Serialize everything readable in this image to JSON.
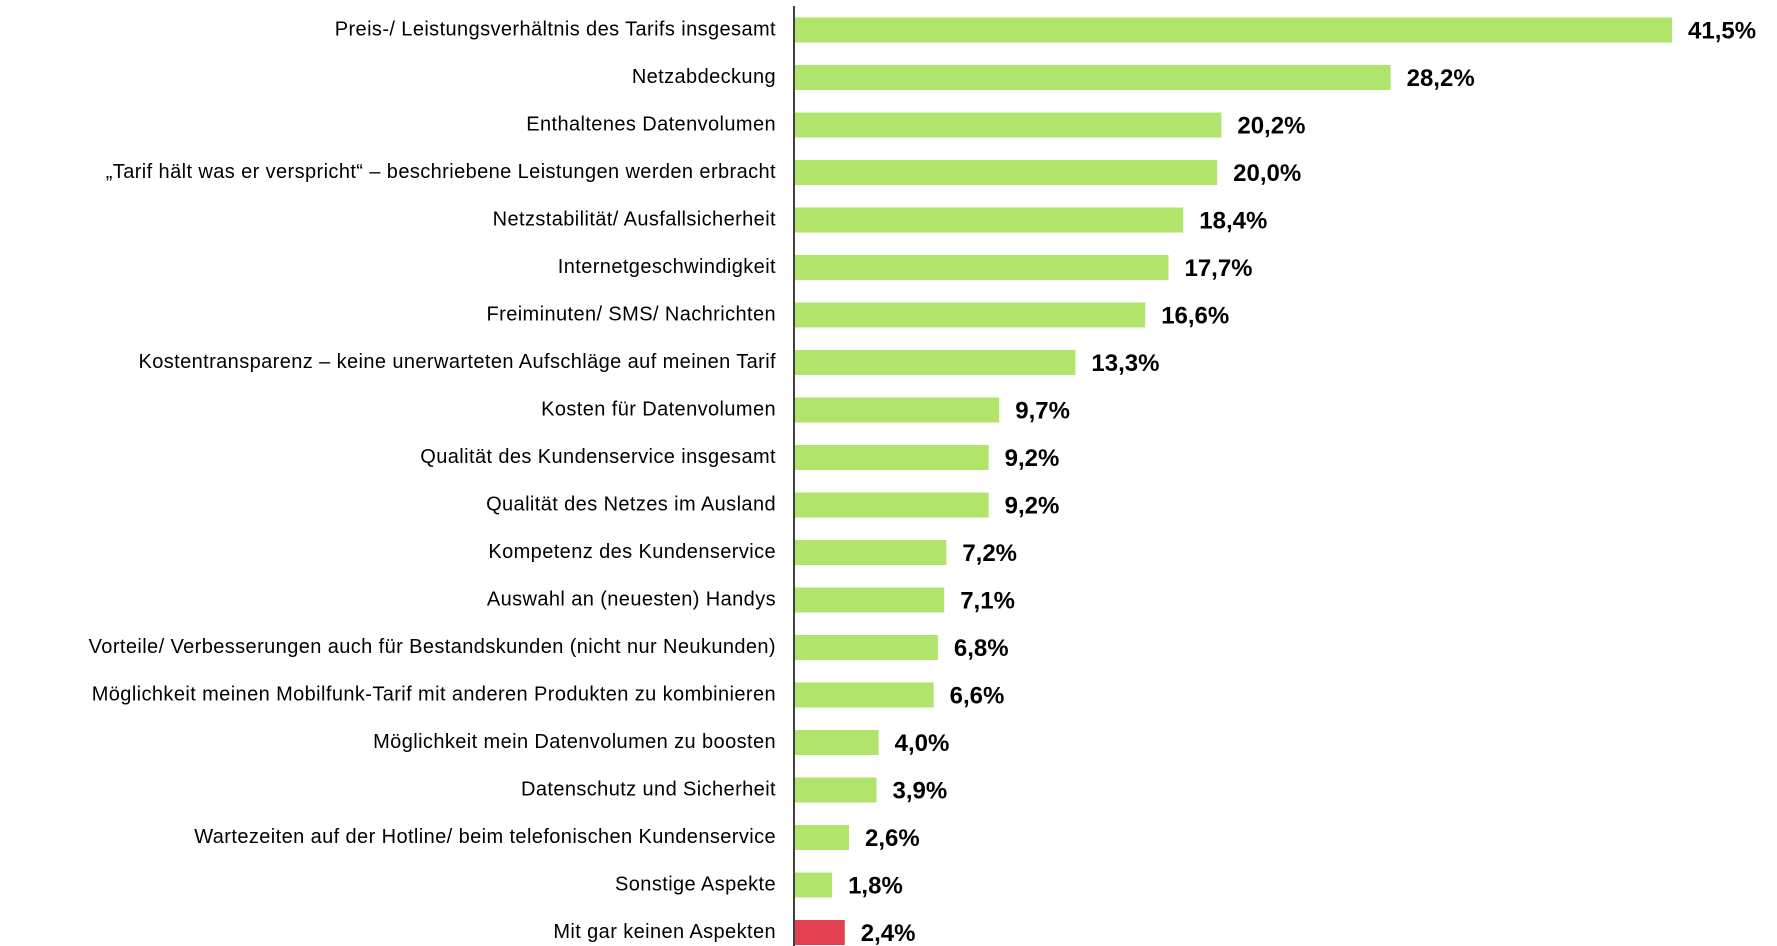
{
  "chart_data": {
    "type": "bar",
    "orientation": "horizontal",
    "categories": [
      "Preis-/ Leistungsverhältnis des Tarifs insgesamt",
      "Netzabdeckung",
      "Enthaltenes Datenvolumen",
      "„Tarif hält was er verspricht“ – beschriebene Leistungen werden erbracht",
      "Netzstabilität/ Ausfallsicherheit",
      "Internetgeschwindigkeit",
      "Freiminuten/ SMS/ Nachrichten",
      "Kostentransparenz – keine unerwarteten Aufschläge auf meinen Tarif",
      "Kosten für Datenvolumen",
      "Qualität des Kundenservice insgesamt",
      "Qualität des Netzes im Ausland",
      "Kompetenz des Kundenservice",
      "Auswahl an (neuesten) Handys",
      "Vorteile/ Verbesserungen auch für Bestandskunden (nicht nur Neukunden)",
      "Möglichkeit meinen Mobilfunk-Tarif mit anderen Produkten zu kombinieren",
      "Möglichkeit mein Datenvolumen zu boosten",
      "Datenschutz und Sicherheit",
      "Wartezeiten auf der Hotline/ beim telefonischen Kundenservice",
      "Sonstige Aspekte",
      "Mit gar keinen Aspekten"
    ],
    "values": [
      41.5,
      28.2,
      20.2,
      20.0,
      18.4,
      17.7,
      16.6,
      13.3,
      9.7,
      9.2,
      9.2,
      7.2,
      7.1,
      6.8,
      6.6,
      4.0,
      3.9,
      2.6,
      1.8,
      2.4
    ],
    "value_labels": [
      "41,5%",
      "28,2%",
      "20,2%",
      "20,0%",
      "18,4%",
      "17,7%",
      "16,6%",
      "13,3%",
      "9,7%",
      "9,2%",
      "9,2%",
      "7,2%",
      "7,1%",
      "6,8%",
      "6,6%",
      "4,0%",
      "3,9%",
      "2,6%",
      "1,8%",
      "2,4%"
    ],
    "colors": [
      "#b0e46b",
      "#b0e46b",
      "#b0e46b",
      "#b0e46b",
      "#b0e46b",
      "#b0e46b",
      "#b0e46b",
      "#b0e46b",
      "#b0e46b",
      "#b0e46b",
      "#b0e46b",
      "#b0e46b",
      "#b0e46b",
      "#b0e46b",
      "#b0e46b",
      "#b0e46b",
      "#b0e46b",
      "#b0e46b",
      "#b0e46b",
      "#e0404f"
    ]
  }
}
